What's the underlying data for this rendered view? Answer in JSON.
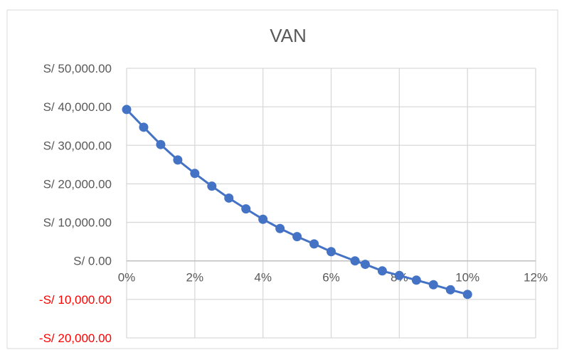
{
  "chart_data": {
    "type": "scatter",
    "title": "VAN",
    "xlabel": "",
    "ylabel": "",
    "xlim": [
      0,
      12
    ],
    "ylim": [
      -20000,
      50000
    ],
    "x_ticks": [
      0,
      2,
      4,
      6,
      8,
      10,
      12
    ],
    "y_ticks": [
      50000,
      40000,
      30000,
      20000,
      10000,
      0,
      -10000,
      -20000
    ],
    "x_tick_labels": [
      "0%",
      "2%",
      "4%",
      "6%",
      "8%",
      "10%",
      "12%"
    ],
    "y_tick_labels": [
      "S/ 50,000.00",
      "S/ 40,000.00",
      "S/ 30,000.00",
      "S/ 20,000.00",
      "S/ 10,000.00",
      "S/ 0.00",
      "-S/ 10,000.00",
      "-S/ 20,000.00"
    ],
    "grid": true,
    "legend": "none",
    "series": [
      {
        "x": [
          0,
          0.5,
          1,
          1.5,
          2,
          2.5,
          3,
          3.5,
          4,
          4.5,
          5,
          5.5,
          6,
          6.7,
          7,
          7.5,
          8,
          8.5,
          9,
          9.5,
          10
        ],
        "y": [
          39300,
          34700,
          30200,
          26200,
          22700,
          19400,
          16300,
          13500,
          10800,
          8400,
          6300,
          4400,
          2400,
          0,
          -900,
          -2600,
          -3800,
          -5000,
          -6200,
          -7500,
          -8700
        ]
      }
    ],
    "colors": {
      "series": "#4472c4",
      "negative_label": "#ff0000",
      "label": "#595959",
      "title": "#595959",
      "grid": "#d9d9d9",
      "frame": "#d9d9d9"
    }
  }
}
